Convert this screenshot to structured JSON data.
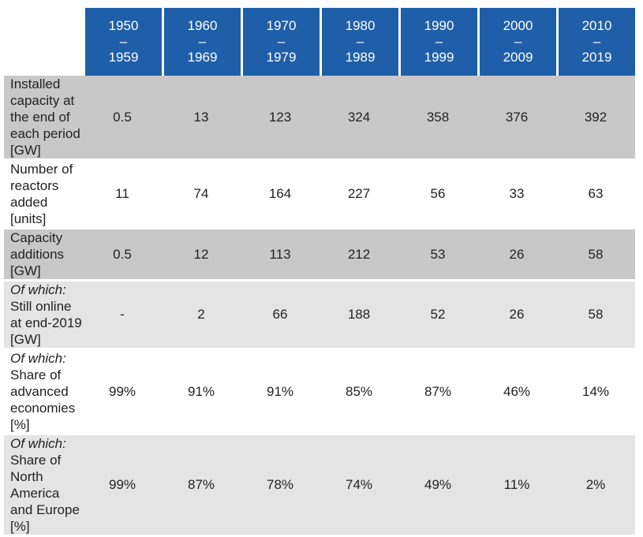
{
  "header": {
    "columns": [
      [
        "1950",
        "–",
        "1959"
      ],
      [
        "1960",
        "–",
        "1969"
      ],
      [
        "1970",
        "–",
        "1979"
      ],
      [
        "1980",
        "–",
        "1989"
      ],
      [
        "1990",
        "–",
        "1999"
      ],
      [
        "2000",
        "–",
        "2009"
      ],
      [
        "2010",
        "–",
        "2019"
      ]
    ]
  },
  "table": {
    "rows": [
      {
        "label": "Installed capacity at the end of each period [GW]",
        "values": [
          "0.5",
          "13",
          "123",
          "324",
          "358",
          "376",
          "392"
        ]
      },
      {
        "label": "Number of reactors added [units]",
        "values": [
          "11",
          "74",
          "164",
          "227",
          "56",
          "33",
          "63"
        ]
      },
      {
        "label": "Capacity additions [GW]",
        "values": [
          "0.5",
          "12",
          "113",
          "212",
          "53",
          "26",
          "58"
        ]
      },
      {
        "prefix": "Of which:",
        "label": "Still online at end-2019 [GW]",
        "values": [
          "-",
          "2",
          "66",
          "188",
          "52",
          "26",
          "58"
        ]
      },
      {
        "prefix": "Of which:",
        "label": "Share of advanced economies [%]",
        "values": [
          "99%",
          "91%",
          "91%",
          "85%",
          "87%",
          "46%",
          "14%"
        ]
      },
      {
        "prefix": "Of which:",
        "label": "Share of North America and Europe [%]",
        "values": [
          "99%",
          "87%",
          "78%",
          "74%",
          "49%",
          "11%",
          "2%"
        ]
      }
    ]
  }
}
